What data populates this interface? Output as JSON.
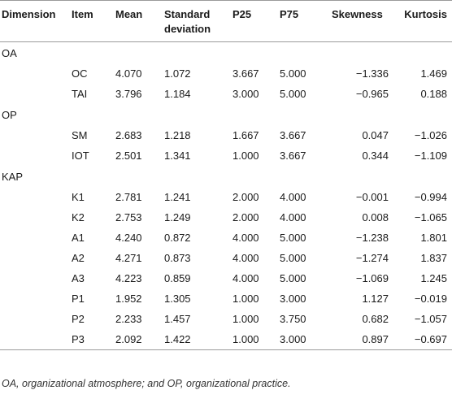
{
  "table": {
    "headers": [
      "Dimension",
      "Item",
      "Mean",
      "Standard deviation",
      "P25",
      "P75",
      "Skewness",
      "Kurtosis"
    ],
    "header_lines": {
      "standard_line1": "Standard",
      "standard_line2": "deviation"
    },
    "groups": [
      {
        "dimension": "OA",
        "rows": [
          {
            "item": "OC",
            "mean": "4.070",
            "sd": "1.072",
            "p25": "3.667",
            "p75": "5.000",
            "skew": "−1.336",
            "kurt": "1.469"
          },
          {
            "item": "TAI",
            "mean": "3.796",
            "sd": "1.184",
            "p25": "3.000",
            "p75": "5.000",
            "skew": "−0.965",
            "kurt": "0.188"
          }
        ]
      },
      {
        "dimension": "OP",
        "rows": [
          {
            "item": "SM",
            "mean": "2.683",
            "sd": "1.218",
            "p25": "1.667",
            "p75": "3.667",
            "skew": "0.047",
            "kurt": "−1.026"
          },
          {
            "item": "IOT",
            "mean": "2.501",
            "sd": "1.341",
            "p25": "1.000",
            "p75": "3.667",
            "skew": "0.344",
            "kurt": "−1.109"
          }
        ]
      },
      {
        "dimension": "KAP",
        "rows": [
          {
            "item": "K1",
            "mean": "2.781",
            "sd": "1.241",
            "p25": "2.000",
            "p75": "4.000",
            "skew": "−0.001",
            "kurt": "−0.994"
          },
          {
            "item": "K2",
            "mean": "2.753",
            "sd": "1.249",
            "p25": "2.000",
            "p75": "4.000",
            "skew": "0.008",
            "kurt": "−1.065"
          },
          {
            "item": "A1",
            "mean": "4.240",
            "sd": "0.872",
            "p25": "4.000",
            "p75": "5.000",
            "skew": "−1.238",
            "kurt": "1.801"
          },
          {
            "item": "A2",
            "mean": "4.271",
            "sd": "0.873",
            "p25": "4.000",
            "p75": "5.000",
            "skew": "−1.274",
            "kurt": "1.837"
          },
          {
            "item": "A3",
            "mean": "4.223",
            "sd": "0.859",
            "p25": "4.000",
            "p75": "5.000",
            "skew": "−1.069",
            "kurt": "1.245"
          },
          {
            "item": "P1",
            "mean": "1.952",
            "sd": "1.305",
            "p25": "1.000",
            "p75": "3.000",
            "skew": "1.127",
            "kurt": "−0.019"
          },
          {
            "item": "P2",
            "mean": "2.233",
            "sd": "1.457",
            "p25": "1.000",
            "p75": "3.750",
            "skew": "0.682",
            "kurt": "−1.057"
          },
          {
            "item": "P3",
            "mean": "2.092",
            "sd": "1.422",
            "p25": "1.000",
            "p75": "3.000",
            "skew": "0.897",
            "kurt": "−0.697"
          }
        ]
      }
    ]
  },
  "footnote": "OA, organizational atmosphere; and OP, organizational practice."
}
